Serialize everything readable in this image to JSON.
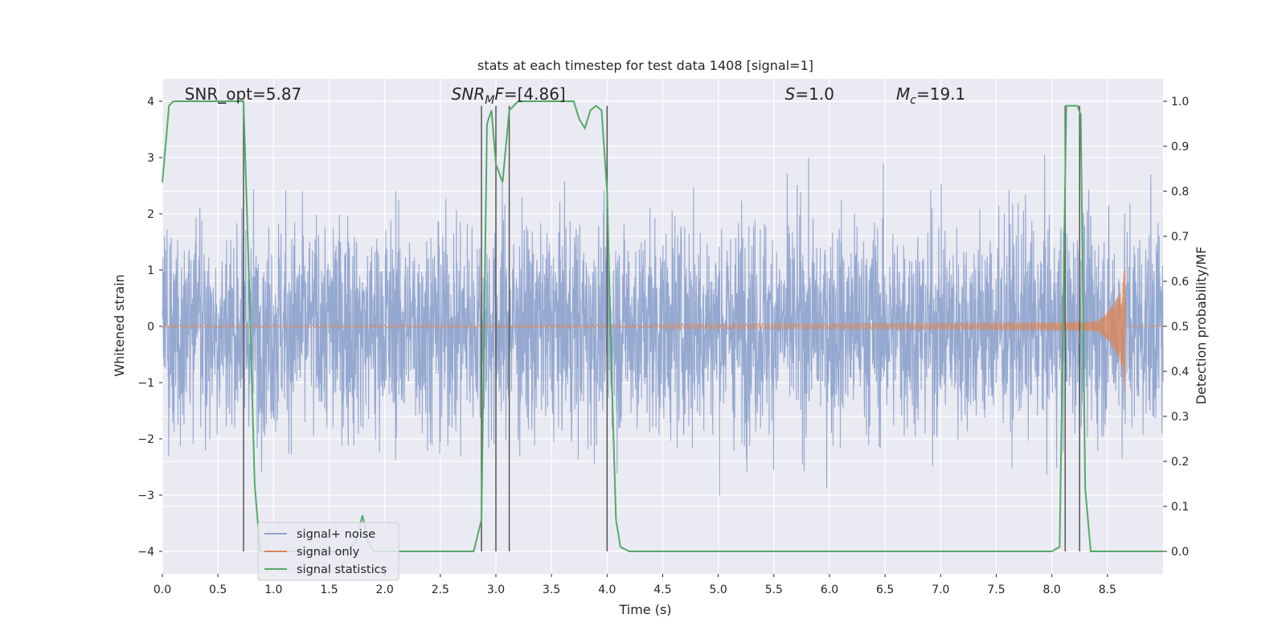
{
  "chart_data": {
    "type": "line",
    "title": "stats at each timestep for test data 1408 [signal=1]",
    "xlabel": "Time (s)",
    "ylabel_left": "Whitened strain",
    "ylabel_right": "Detection probability/MF",
    "xlim": [
      0.0,
      9.0
    ],
    "ylim_left": [
      -4.4,
      4.4
    ],
    "ylim_right": [
      -0.05,
      1.05
    ],
    "x_ticks": [
      0.0,
      0.5,
      1.0,
      1.5,
      2.0,
      2.5,
      3.0,
      3.5,
      4.0,
      4.5,
      5.0,
      5.5,
      6.0,
      6.5,
      7.0,
      7.5,
      8.0,
      8.5
    ],
    "x_tick_labels": [
      "0.0",
      "0.5",
      "1.0",
      "1.5",
      "2.0",
      "2.5",
      "3.0",
      "3.5",
      "4.0",
      "4.5",
      "5.0",
      "5.5",
      "6.0",
      "6.5",
      "7.0",
      "7.5",
      "8.0",
      "8.5"
    ],
    "y_left_ticks": [
      -4,
      -3,
      -2,
      -1,
      0,
      1,
      2,
      3,
      4
    ],
    "y_left_tick_labels": [
      "−4",
      "−3",
      "−2",
      "−1",
      "0",
      "1",
      "2",
      "3",
      "4"
    ],
    "y_right_ticks": [
      0.0,
      0.1,
      0.2,
      0.3,
      0.4,
      0.5,
      0.6,
      0.7,
      0.8,
      0.9,
      1.0
    ],
    "y_right_tick_labels": [
      "0.0",
      "0.1",
      "0.2",
      "0.3",
      "0.4",
      "0.5",
      "0.6",
      "0.7",
      "0.8",
      "0.9",
      "1.0"
    ],
    "grid": true,
    "legend_position": "lower-left",
    "annotations": [
      {
        "id": "snr-opt",
        "text": "SNR_opt=5.87",
        "x": 0.2
      },
      {
        "id": "snr-mf",
        "text": "SNR_MF=[4.86]",
        "x": 2.6
      },
      {
        "id": "s-value",
        "text": "S=1.0",
        "x": 5.6
      },
      {
        "id": "mc-value",
        "text": "M_c=19.1",
        "x": 6.6
      }
    ],
    "series": [
      {
        "name": "signal+ noise",
        "axis": "left",
        "color": "#8fa4cd",
        "description": "whitened noisy strain, ~Gaussian noise with std ~1 sampled over 0-9 s"
      },
      {
        "name": "signal only",
        "axis": "left",
        "color": "#dd8452",
        "description": "chirp waveform, small amplitude, growing to ~1.2 near 8.65 s then ending"
      },
      {
        "name": "signal statistics",
        "axis": "right",
        "color": "#55a868",
        "x": [
          0.0,
          0.06,
          0.1,
          0.2,
          0.3,
          0.4,
          0.5,
          0.6,
          0.7,
          0.73,
          0.78,
          0.83,
          0.88,
          0.95,
          1.05,
          1.15,
          1.25,
          1.35,
          1.45,
          1.55,
          1.65,
          1.74,
          1.8,
          1.85,
          1.9,
          2.0,
          2.2,
          2.5,
          2.7,
          2.8,
          2.87,
          2.92,
          2.96,
          3.0,
          3.06,
          3.12,
          3.2,
          3.3,
          3.4,
          3.5,
          3.6,
          3.7,
          3.75,
          3.8,
          3.85,
          3.9,
          3.95,
          4.0,
          4.04,
          4.08,
          4.12,
          4.2,
          4.4,
          5.0,
          6.0,
          7.0,
          8.0,
          8.07,
          8.1,
          8.13,
          8.16,
          8.2,
          8.23,
          8.26,
          8.3,
          8.35,
          8.4,
          8.5,
          8.6,
          8.8,
          9.0
        ],
        "y": [
          0.82,
          0.99,
          1.0,
          1.0,
          1.0,
          1.0,
          1.0,
          1.0,
          1.0,
          1.0,
          0.6,
          0.15,
          0.0,
          0.0,
          0.0,
          0.0,
          0.0,
          0.0,
          0.0,
          0.0,
          0.0,
          0.02,
          0.08,
          0.02,
          0.0,
          0.0,
          0.0,
          0.0,
          0.0,
          0.0,
          0.07,
          0.95,
          0.98,
          0.86,
          0.82,
          0.98,
          1.0,
          1.0,
          1.0,
          1.0,
          1.0,
          1.0,
          0.96,
          0.94,
          0.98,
          0.99,
          0.98,
          0.8,
          0.4,
          0.07,
          0.01,
          0.0,
          0.0,
          0.0,
          0.0,
          0.0,
          0.0,
          0.01,
          0.5,
          0.99,
          0.99,
          0.99,
          0.99,
          0.97,
          0.14,
          0.0,
          0.0,
          0.0,
          0.0,
          0.0,
          0.0
        ]
      }
    ],
    "vertical_markers": {
      "color": "#555555",
      "axis": "right",
      "x": [
        0.73,
        2.87,
        3.0,
        3.12,
        4.0,
        8.12,
        8.25
      ],
      "ymin": 0.0,
      "ymax": 0.99
    }
  }
}
